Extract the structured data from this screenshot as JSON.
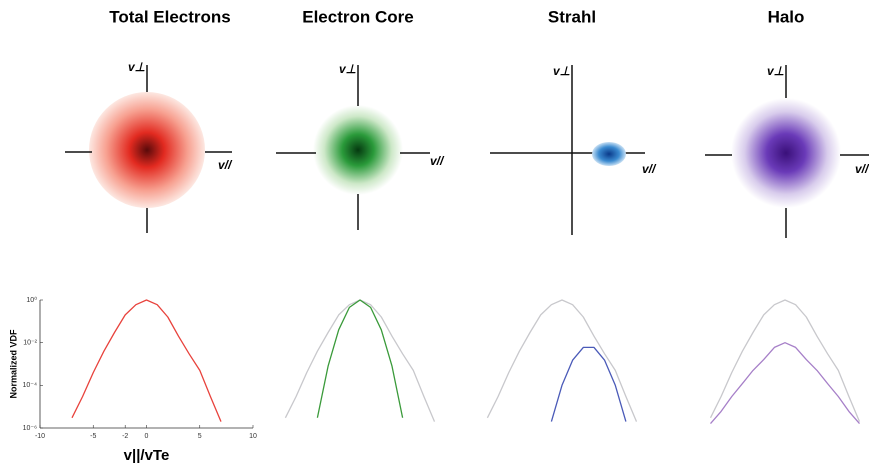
{
  "diagram": {
    "v_perp": "v⊥",
    "v_par": "v//"
  },
  "chart_data": [
    {
      "type": "line",
      "title": "Total Electrons",
      "y_label": "Normalized VDF",
      "x_label": "v||/vTe",
      "log_y": true,
      "xlim": [
        -10,
        10
      ],
      "ylim": [
        1e-06,
        1
      ],
      "xticks": [
        -10,
        -5,
        -2,
        0,
        5,
        10
      ],
      "yticks": [
        {
          "value": 1,
          "label": "10⁰"
        },
        {
          "value": 0.01,
          "label": "10⁻²"
        },
        {
          "value": 0.0001,
          "label": "10⁻⁴"
        },
        {
          "value": 1e-06,
          "label": "10⁻⁶"
        }
      ],
      "x": [
        -7,
        -6,
        -5,
        -4,
        -3,
        -2,
        -1,
        0,
        1,
        2,
        3,
        4,
        5,
        6,
        7
      ],
      "series": [
        {
          "color": "#e8423c",
          "values": [
            3e-06,
            3e-05,
            0.0004,
            0.004,
            0.03,
            0.2,
            0.6,
            1,
            0.6,
            0.16,
            0.02,
            0.003,
            0.0005,
            3e-05,
            2e-06
          ]
        }
      ]
    },
    {
      "type": "line",
      "title": "Electron Core",
      "log_y": true,
      "xlim": [
        -10,
        10
      ],
      "ylim": [
        1e-06,
        1
      ],
      "x": [
        -7,
        -6,
        -5,
        -4,
        -3,
        -2,
        -1,
        0,
        1,
        2,
        3,
        4,
        5,
        6,
        7
      ],
      "series": [
        {
          "color": "#c8c8cc",
          "values": [
            3e-06,
            3e-05,
            0.0004,
            0.004,
            0.03,
            0.2,
            0.6,
            1,
            0.6,
            0.16,
            0.02,
            0.003,
            0.0005,
            3e-05,
            2e-06
          ]
        },
        {
          "color": "#3a9a3a",
          "values": [
            null,
            null,
            null,
            3e-06,
            0.0008,
            0.04,
            0.45,
            1,
            0.45,
            0.04,
            0.0008,
            3e-06,
            null,
            null,
            null
          ]
        }
      ]
    },
    {
      "type": "line",
      "title": "Strahl",
      "log_y": true,
      "xlim": [
        -10,
        10
      ],
      "ylim": [
        1e-06,
        1
      ],
      "x": [
        -7,
        -6,
        -5,
        -4,
        -3,
        -2,
        -1,
        0,
        1,
        2,
        3,
        4,
        5,
        6,
        7
      ],
      "series": [
        {
          "color": "#c8c8cc",
          "values": [
            3e-06,
            3e-05,
            0.0004,
            0.004,
            0.03,
            0.2,
            0.6,
            1,
            0.6,
            0.16,
            0.02,
            0.003,
            0.0005,
            3e-05,
            2e-06
          ]
        },
        {
          "color": "#4a5ab8",
          "values": [
            null,
            null,
            null,
            null,
            null,
            null,
            2e-06,
            0.0001,
            0.0015,
            0.006,
            0.006,
            0.0015,
            0.0001,
            2e-06,
            null
          ]
        }
      ]
    },
    {
      "type": "line",
      "title": "Halo",
      "log_y": true,
      "xlim": [
        -10,
        10
      ],
      "ylim": [
        1e-06,
        1
      ],
      "x": [
        -7,
        -6,
        -5,
        -4,
        -3,
        -2,
        -1,
        0,
        1,
        2,
        3,
        4,
        5,
        6,
        7
      ],
      "series": [
        {
          "color": "#c8c8cc",
          "values": [
            3e-06,
            3e-05,
            0.0004,
            0.004,
            0.03,
            0.2,
            0.6,
            1,
            0.6,
            0.16,
            0.02,
            0.003,
            0.0005,
            3e-05,
            2e-06
          ]
        },
        {
          "color": "#a67fc8",
          "values": [
            1.6e-06,
            6e-06,
            3e-05,
            0.00012,
            0.0005,
            0.0016,
            0.006,
            0.01,
            0.006,
            0.0016,
            0.0005,
            0.00012,
            3e-05,
            6e-06,
            1.6e-06
          ]
        }
      ]
    }
  ]
}
